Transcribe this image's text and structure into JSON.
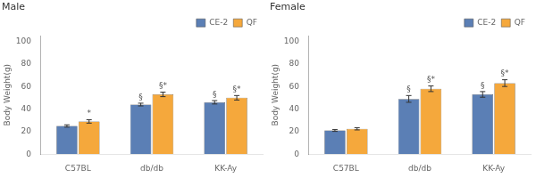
{
  "chart_data": [
    {
      "type": "bar",
      "title": "Male",
      "categories": [
        "C57BL",
        "db/db",
        "KK-Ay"
      ],
      "series": [
        {
          "name": "CE-2",
          "color": "#5b7fb5",
          "values": [
            25,
            44,
            46
          ],
          "errors": [
            1.0,
            1.2,
            1.5
          ],
          "annotations": [
            null,
            "§",
            "§"
          ]
        },
        {
          "name": "QF",
          "color": "#f5a83c",
          "values": [
            29,
            53,
            50
          ],
          "errors": [
            1.5,
            2.0,
            2.0
          ],
          "annotations": [
            "*",
            "§*",
            "§*"
          ]
        }
      ],
      "ylabel": "Body Weight(g)",
      "ylim": [
        0,
        105
      ],
      "yticks": [
        0,
        20,
        40,
        60,
        80,
        100
      ],
      "grid": false,
      "legend": "upper right"
    },
    {
      "type": "bar",
      "title": "Female",
      "categories": [
        "C57BL",
        "db/db",
        "KK-Ay"
      ],
      "series": [
        {
          "name": "CE-2",
          "color": "#5b7fb5",
          "values": [
            21,
            49,
            53
          ],
          "errors": [
            0.8,
            3.0,
            2.5
          ],
          "annotations": [
            null,
            "§",
            "§"
          ]
        },
        {
          "name": "QF",
          "color": "#f5a83c",
          "values": [
            22.5,
            58,
            63
          ],
          "errors": [
            1.0,
            2.5,
            3.0
          ],
          "annotations": [
            null,
            "§*",
            "§*"
          ]
        }
      ],
      "ylabel": "Body Weight(g)",
      "ylim": [
        0,
        105
      ],
      "yticks": [
        0,
        20,
        40,
        60,
        80,
        100
      ],
      "grid": false,
      "legend": "upper right"
    }
  ]
}
